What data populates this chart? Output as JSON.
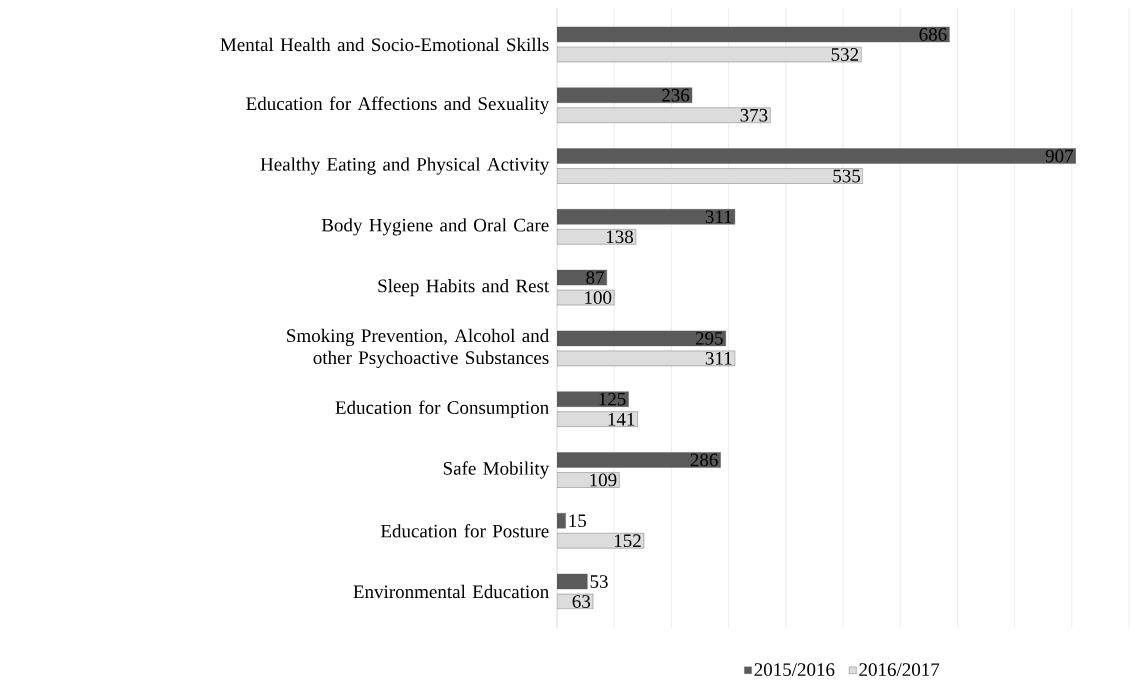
{
  "chart_data": {
    "type": "bar",
    "orientation": "horizontal",
    "categories": [
      "Mental Health and Socio-Emotional Skills",
      "Education for Affections and Sexuality",
      "Healthy Eating and Physical Activity",
      "Body Hygiene and Oral Care",
      "Sleep Habits and Rest",
      "Smoking Prevention, Alcohol and other Psychoactive Substances",
      "Education for Consumption",
      "Safe Mobility",
      "Education for Posture",
      "Environmental Education"
    ],
    "series": [
      {
        "name": "2015/2016",
        "color": "#5a5a5a",
        "values": [
          686,
          236,
          907,
          311,
          87,
          295,
          125,
          286,
          15,
          53
        ]
      },
      {
        "name": "2016/2017",
        "color": "#dcdcdc",
        "values": [
          532,
          373,
          535,
          138,
          100,
          311,
          141,
          109,
          152,
          63
        ]
      }
    ],
    "xlim": [
      0,
      1000
    ],
    "xticks": [
      {
        "value": 0,
        "label": null
      },
      {
        "value": 100,
        "label": null
      },
      {
        "value": 200,
        "label": null
      },
      {
        "value": 300,
        "label": null
      },
      {
        "value": 400,
        "label": null
      },
      {
        "value": 500,
        "label": null
      },
      {
        "value": 600,
        "label": null
      },
      {
        "value": 700,
        "label": null
      },
      {
        "value": 800,
        "label": null
      },
      {
        "value": 900,
        "label": null
      },
      {
        "value": 1000,
        "label": null
      }
    ],
    "tick_labels": "y",
    "grid": "x",
    "legend": "bottom",
    "data_labels": true
  }
}
